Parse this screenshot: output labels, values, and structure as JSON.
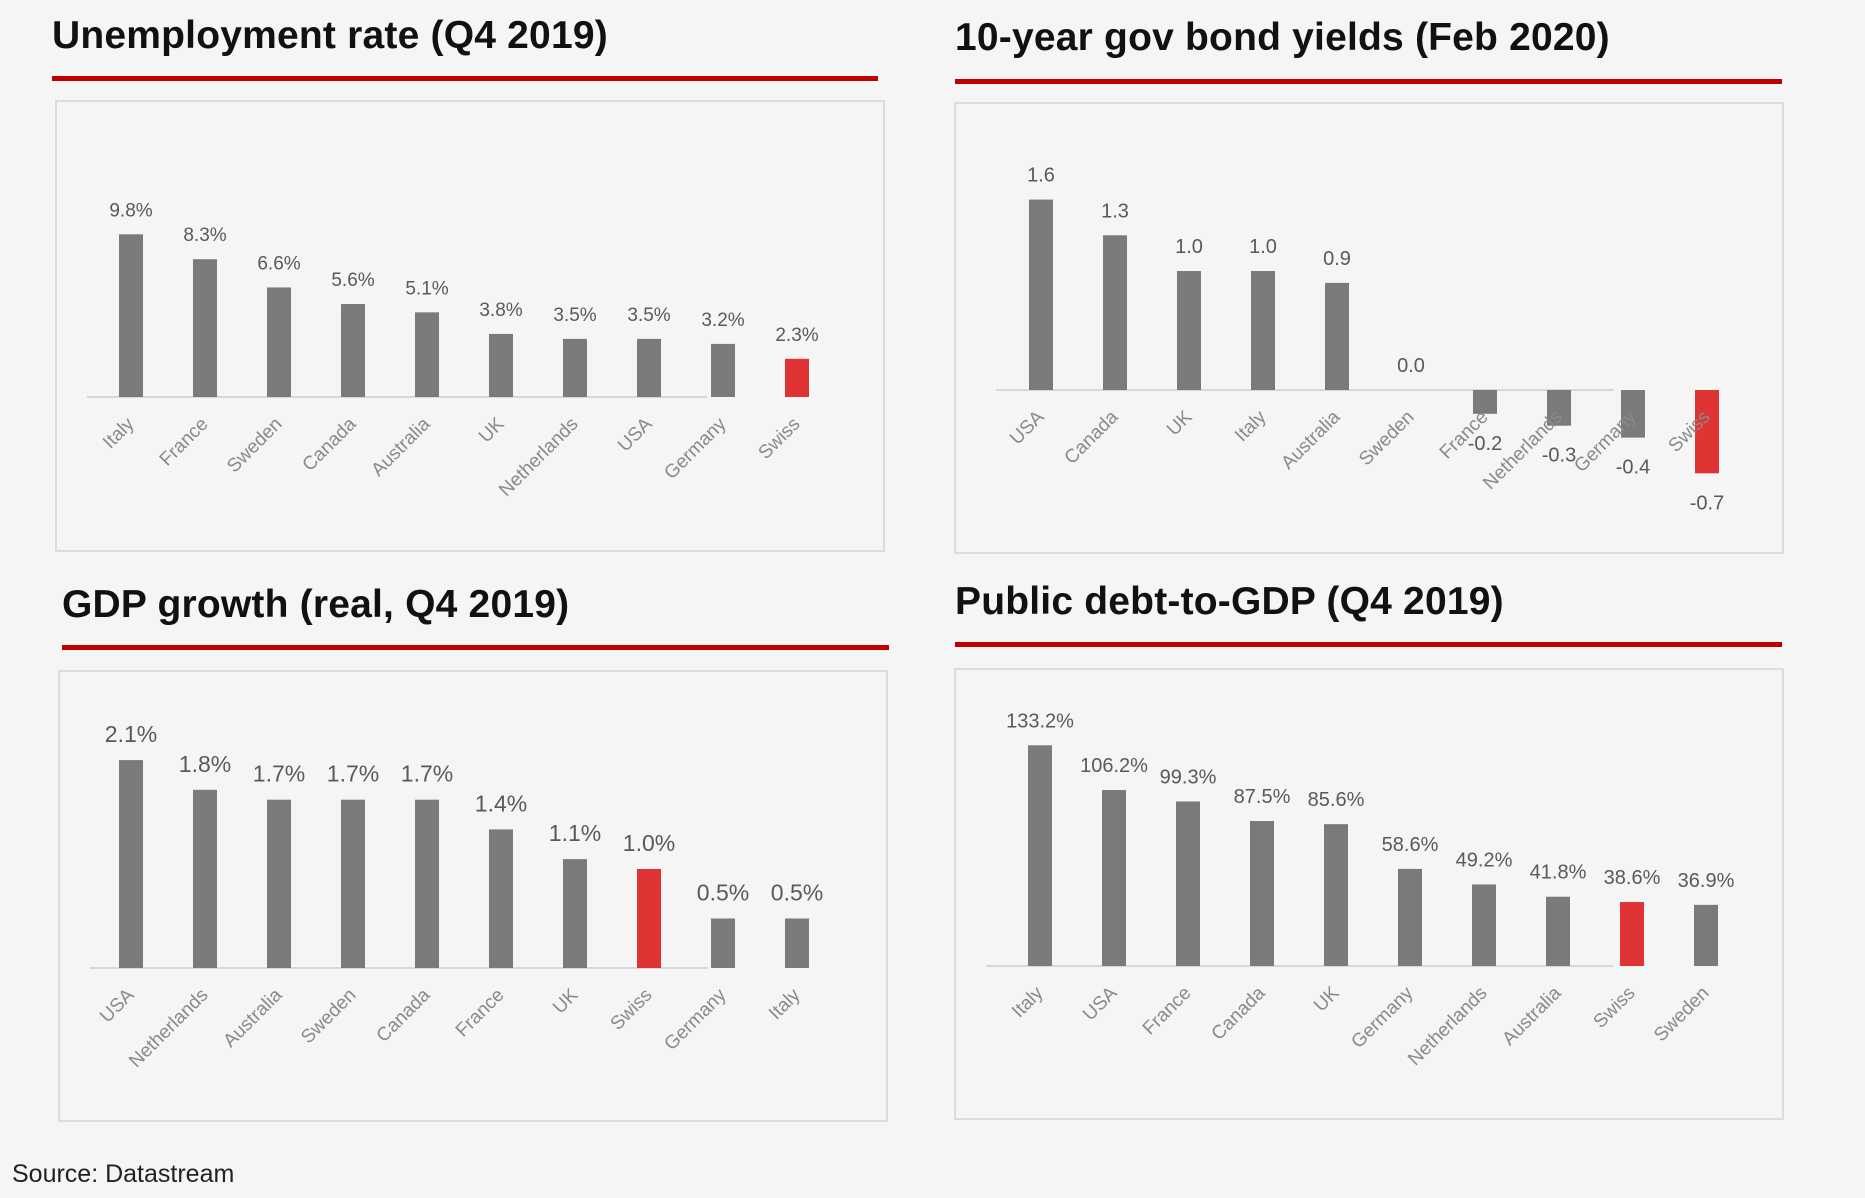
{
  "colors": {
    "bar": "#7a7a7a",
    "highlight": "#e03333",
    "rule": "#c00000",
    "axis": "#d8d8d8",
    "label": "#595959"
  },
  "source": "Source: Datastream",
  "chart_data": [
    {
      "type": "bar",
      "title": "Unemployment rate (Q4 2019)",
      "categories": [
        "Italy",
        "France",
        "Sweden",
        "Canada",
        "Australia",
        "UK",
        "Netherlands",
        "USA",
        "Germany",
        "Swiss"
      ],
      "values": [
        9.8,
        8.3,
        6.6,
        5.6,
        5.1,
        3.8,
        3.5,
        3.5,
        3.2,
        2.3
      ],
      "labels": [
        "9.8%",
        "8.3%",
        "6.6%",
        "5.6%",
        "5.1%",
        "3.8%",
        "3.5%",
        "3.5%",
        "3.2%",
        "2.3%"
      ],
      "highlight": "Swiss",
      "grid": false
    },
    {
      "type": "bar",
      "title": "10-year gov bond yields (Feb 2020)",
      "categories": [
        "USA",
        "Canada",
        "UK",
        "Italy",
        "Australia",
        "Sweden",
        "France",
        "Netherlands",
        "Germany",
        "Swiss"
      ],
      "values": [
        1.6,
        1.3,
        1.0,
        1.0,
        0.9,
        0.0,
        -0.2,
        -0.3,
        -0.4,
        -0.7
      ],
      "labels": [
        "1.6",
        "1.3",
        "1.0",
        "1.0",
        "0.9",
        "0.0",
        "-0.2",
        "-0.3",
        "-0.4",
        "-0.7"
      ],
      "highlight": "Swiss",
      "grid": false
    },
    {
      "type": "bar",
      "title": "GDP growth (real, Q4 2019)",
      "categories": [
        "USA",
        "Netherlands",
        "Australia",
        "Sweden",
        "Canada",
        "France",
        "UK",
        "Swiss",
        "Germany",
        "Italy"
      ],
      "values": [
        2.1,
        1.8,
        1.7,
        1.7,
        1.7,
        1.4,
        1.1,
        1.0,
        0.5,
        0.5
      ],
      "labels": [
        "2.1%",
        "1.8%",
        "1.7%",
        "1.7%",
        "1.7%",
        "1.4%",
        "1.1%",
        "1.0%",
        "0.5%",
        "0.5%"
      ],
      "highlight": "Swiss",
      "grid": false
    },
    {
      "type": "bar",
      "title": "Public debt-to-GDP (Q4 2019)",
      "categories": [
        "Italy",
        "USA",
        "France",
        "Canada",
        "UK",
        "Germany",
        "Netherlands",
        "Australia",
        "Swiss",
        "Sweden"
      ],
      "values": [
        133.2,
        106.2,
        99.3,
        87.5,
        85.6,
        58.6,
        49.2,
        41.8,
        38.6,
        36.9
      ],
      "labels": [
        "133.2%",
        "106.2%",
        "99.3%",
        "87.5%",
        "85.6%",
        "58.6%",
        "49.2%",
        "41.8%",
        "38.6%",
        "36.9%"
      ],
      "highlight": "Swiss",
      "grid": false
    }
  ]
}
